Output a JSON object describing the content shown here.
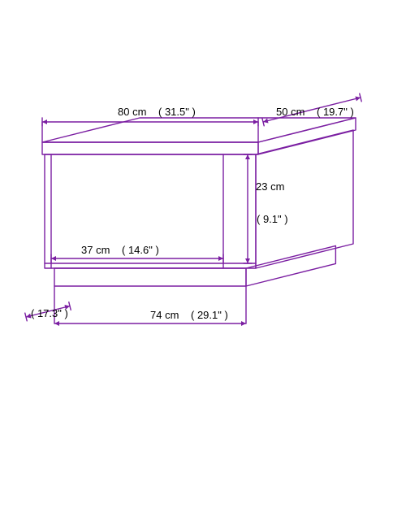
{
  "diagram": {
    "type": "dimensioned_isometric_drawing",
    "background": "#ffffff",
    "stroke_color": "#7b1fa2",
    "stroke_width": 1.4,
    "arrow_size": 6,
    "label_font_size": 13,
    "label_color": "#000000",
    "top_w": {
      "cm": "80 cm",
      "in": "( 31.5\" )"
    },
    "top_d": {
      "cm": "50 cm",
      "in": "( 19.7\" )"
    },
    "inner_h": {
      "cm": "23 cm",
      "in": "( 9.1\" )"
    },
    "inner_w": {
      "cm": "37 cm",
      "in": "( 14.6\" )"
    },
    "base_d": {
      "cm": "",
      "cm_suffix": "( 17.3\" )"
    },
    "base_w": {
      "cm": "74 cm",
      "in": "( 29.1\" )"
    },
    "cap_half": 5
  }
}
